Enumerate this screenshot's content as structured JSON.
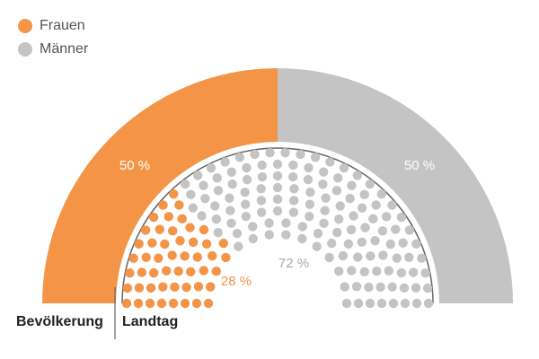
{
  "legend": [
    {
      "label": "Frauen",
      "color": "#F39447"
    },
    {
      "label": "Männer",
      "color": "#C4C4C4"
    }
  ],
  "labels": {
    "bevoelkerung": "Bevölkerung",
    "landtag": "Landtag"
  },
  "chart_data": [
    {
      "type": "pie",
      "subtype": "half-donut",
      "label": "Bevölkerung",
      "categories": [
        "Frauen",
        "Männer"
      ],
      "values": [
        50,
        50
      ],
      "value_labels": [
        "50 %",
        "50 %"
      ],
      "colors": [
        "#F39447",
        "#C4C4C4"
      ]
    },
    {
      "type": "pie",
      "subtype": "parliament-seats",
      "label": "Landtag",
      "categories": [
        "Frauen",
        "Männer"
      ],
      "values": [
        28,
        72
      ],
      "value_labels": [
        "28 %",
        "72 %"
      ],
      "seats": {
        "Frauen": 50,
        "Männer": 131
      },
      "colors": [
        "#F39447",
        "#C4C4C4"
      ]
    }
  ]
}
